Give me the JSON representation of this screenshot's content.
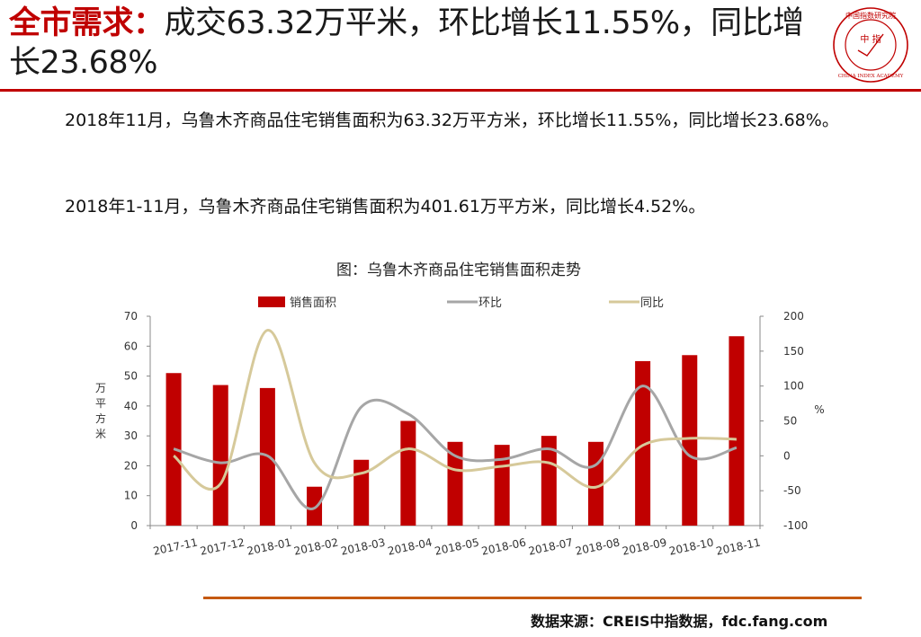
{
  "header": {
    "keyword": "全市需求：",
    "headline": "成交63.32万平米，环比增长11.55%，同比增长23.68%"
  },
  "logo": {
    "top_text": "中国指数研究院",
    "center_text": "中 指",
    "bottom_text": "CHINA INDEX ACADEMY"
  },
  "body": {
    "p1": "2018年11月，乌鲁木齐商品住宅销售面积为63.32万平方米，环比增长11.55%，同比增长23.68%。",
    "p2": "2018年1-11月，乌鲁木齐商品住宅销售面积为401.61万平方米，同比增长4.52%。"
  },
  "source": "数据来源：CREIS中指数据，fdc.fang.com",
  "colors": {
    "accent": "#c00000",
    "bar": "#c00000",
    "hb_line": "#a6a6a6",
    "tb_line": "#d6c99a",
    "footer_rule": "#c55a11"
  },
  "chart_data": {
    "type": "bar",
    "title": "图：乌鲁木齐商品住宅销售面积走势",
    "categories": [
      "2017-11",
      "2017-12",
      "2018-01",
      "2018-02",
      "2018-03",
      "2018-04",
      "2018-05",
      "2018-06",
      "2018-07",
      "2018-08",
      "2018-09",
      "2018-10",
      "2018-11"
    ],
    "series": [
      {
        "name": "销售面积",
        "type": "bar",
        "axis": "left",
        "values": [
          51,
          47,
          46,
          13,
          22,
          35,
          28,
          27,
          30,
          28,
          55,
          57,
          63.32
        ]
      },
      {
        "name": "环比",
        "type": "line",
        "axis": "right",
        "values": [
          10,
          -10,
          0,
          -75,
          70,
          60,
          0,
          -5,
          10,
          -13,
          100,
          0,
          11.55
        ]
      },
      {
        "name": "同比",
        "type": "line",
        "axis": "right",
        "values": [
          0,
          -40,
          180,
          -10,
          -25,
          10,
          -20,
          -15,
          -10,
          -45,
          15,
          25,
          23.68
        ]
      }
    ],
    "ylabel": "万平方米",
    "y2label": "%",
    "ylim": [
      0,
      70
    ],
    "yticks": [
      0,
      10,
      20,
      30,
      40,
      50,
      60,
      70
    ],
    "y2lim": [
      -100,
      200
    ],
    "y2ticks": [
      -100,
      -50,
      0,
      50,
      100,
      150,
      200
    ],
    "legend": "top",
    "grid": false
  }
}
